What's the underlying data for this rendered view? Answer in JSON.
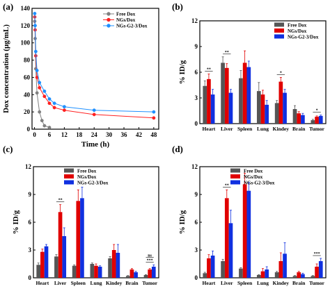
{
  "figure": {
    "panel_labels": [
      "(a)",
      "(b)",
      "(c)",
      "(d)"
    ]
  },
  "chart_data": [
    {
      "type": "line",
      "panel": "(a)",
      "xlabel": "Time (h)",
      "ylabel": "Dox concentration (μg/mL)",
      "xlim": [
        -1,
        50
      ],
      "ylim": [
        0,
        140
      ],
      "xticks": [
        0,
        6,
        12,
        18,
        24,
        30,
        36,
        42,
        48
      ],
      "yticks": [
        0,
        20,
        40,
        60,
        80,
        100,
        120,
        140
      ],
      "legend_position": "top-right",
      "series": [
        {
          "name": "Free Dox",
          "color": "#808080",
          "marker": "circle",
          "x": [
            0.083,
            0.25,
            0.5,
            1,
            2,
            3,
            4,
            6
          ],
          "y": [
            125,
            105,
            70,
            42,
            20,
            10,
            4,
            2
          ]
        },
        {
          "name": "NGs/Dox",
          "color": "#ff2020",
          "marker": "circle",
          "x": [
            0.083,
            0.25,
            0.5,
            1,
            2,
            4,
            6,
            8,
            12,
            24,
            48
          ],
          "y": [
            130,
            115,
            85,
            60,
            48,
            38,
            30,
            25,
            22,
            17,
            13
          ]
        },
        {
          "name": "NGs-G2-3/Dox",
          "color": "#1e90ff",
          "marker": "circle",
          "x": [
            0.083,
            0.25,
            0.5,
            1,
            2,
            4,
            6,
            8,
            12,
            24,
            48
          ],
          "y": [
            134,
            120,
            90,
            68,
            54,
            44,
            35,
            30,
            26,
            22,
            20
          ]
        }
      ]
    },
    {
      "type": "bar",
      "panel": "(b)",
      "ylabel": "% ID/g",
      "ylim": [
        0,
        12
      ],
      "yticks": [
        0,
        3,
        6,
        9,
        12
      ],
      "legend_position": "top-right",
      "categories": [
        "Heart",
        "Liver",
        "Spleen",
        "Lung",
        "Kindey",
        "Brain",
        "Tumor"
      ],
      "series": [
        {
          "name": "Free Dox",
          "color": "#555555",
          "values": [
            4.4,
            7.1,
            5.3,
            3.8,
            2.4,
            1.7,
            0.4
          ],
          "errors": [
            0.6,
            0.7,
            0.9,
            1.0,
            0.3,
            0.4,
            0.1
          ]
        },
        {
          "name": "NGs/Dox",
          "color": "#e00000",
          "values": [
            5.2,
            6.5,
            7.1,
            3.4,
            4.9,
            1.2,
            0.8
          ],
          "errors": [
            0.6,
            0.5,
            1.4,
            0.5,
            0.5,
            0.2,
            0.1
          ]
        },
        {
          "name": "NGs-G2-3/Dox",
          "color": "#1030e0",
          "values": [
            3.4,
            3.6,
            6.6,
            2.2,
            3.6,
            1.0,
            0.9
          ],
          "errors": [
            0.6,
            0.4,
            0.7,
            0.5,
            0.4,
            0.2,
            0.1
          ]
        }
      ],
      "annotations": [
        {
          "category": "Heart",
          "text": "**"
        },
        {
          "category": "Liver",
          "text": "**"
        },
        {
          "category": "Kindey",
          "text": "*"
        },
        {
          "category": "Tumor",
          "text": "*"
        }
      ]
    },
    {
      "type": "bar",
      "panel": "(c)",
      "ylabel": "% ID/g",
      "ylim": [
        0,
        12
      ],
      "yticks": [
        0,
        3,
        6,
        9,
        12
      ],
      "legend_position": "top-left",
      "categories": [
        "Heart",
        "Liver",
        "Spleen",
        "Lung",
        "Kindey",
        "Brain",
        "Tumor"
      ],
      "series": [
        {
          "name": "Free Dox",
          "color": "#555555",
          "values": [
            1.4,
            2.3,
            1.3,
            1.5,
            2.1,
            0.2,
            0.3
          ],
          "errors": [
            0.2,
            0.2,
            0.1,
            0.1,
            0.2,
            0.05,
            0.05
          ]
        },
        {
          "name": "NGs/Dox",
          "color": "#e00000",
          "values": [
            2.8,
            7.1,
            8.3,
            1.3,
            3.0,
            0.9,
            0.9
          ],
          "errors": [
            0.3,
            0.8,
            1.2,
            0.2,
            0.6,
            0.1,
            0.1
          ]
        },
        {
          "name": "NGs-G2-3/Dox",
          "color": "#1030e0",
          "values": [
            3.4,
            4.5,
            8.6,
            1.2,
            2.7,
            0.6,
            1.2
          ],
          "errors": [
            0.2,
            0.9,
            1.2,
            0.1,
            0.9,
            0.1,
            0.2
          ]
        }
      ],
      "annotations": [
        {
          "category": "Liver",
          "text": "**"
        },
        {
          "category": "Tumor",
          "text": "***"
        },
        {
          "category": "Tumor",
          "text": "ns"
        }
      ]
    },
    {
      "type": "bar",
      "panel": "(d)",
      "ylabel": "% ID/g",
      "ylim": [
        0,
        12
      ],
      "yticks": [
        0,
        3,
        6,
        9,
        12
      ],
      "legend_position": "top-left",
      "categories": [
        "Heart",
        "Liver",
        "Spleen",
        "Lung",
        "Kindey",
        "Brain",
        "Tumor"
      ],
      "series": [
        {
          "name": "Free Dox",
          "color": "#555555",
          "values": [
            0.5,
            1.8,
            1.0,
            0.3,
            0.6,
            0.2,
            0.2
          ],
          "errors": [
            0.1,
            0.2,
            0.1,
            0.05,
            0.1,
            0.05,
            0.05
          ]
        },
        {
          "name": "NGs/Dox",
          "color": "#e00000",
          "values": [
            2.1,
            8.6,
            10.1,
            0.7,
            1.8,
            0.6,
            1.2
          ],
          "errors": [
            0.4,
            0.9,
            1.2,
            0.3,
            0.9,
            0.1,
            0.3
          ]
        },
        {
          "name": "NGs-G2-3/Dox",
          "color": "#1030e0",
          "values": [
            2.4,
            5.9,
            9.4,
            0.9,
            2.6,
            0.4,
            1.8
          ],
          "errors": [
            0.5,
            1.4,
            0.9,
            0.3,
            1.2,
            0.1,
            0.3
          ]
        }
      ],
      "annotations": [
        {
          "category": "Liver",
          "text": "**"
        },
        {
          "category": "Tumor",
          "text": "***"
        }
      ]
    }
  ]
}
